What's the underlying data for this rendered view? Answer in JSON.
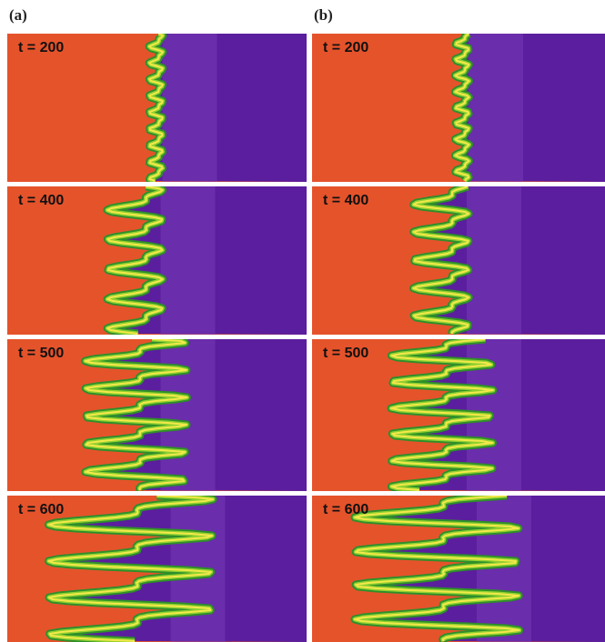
{
  "columns": [
    {
      "label": "(a)",
      "rows": [
        "t = 200",
        "t = 400",
        "t = 500",
        "t = 600"
      ]
    },
    {
      "label": "(b)",
      "rows": [
        "t = 200",
        "t = 400",
        "t = 500",
        "t = 600"
      ]
    }
  ]
}
